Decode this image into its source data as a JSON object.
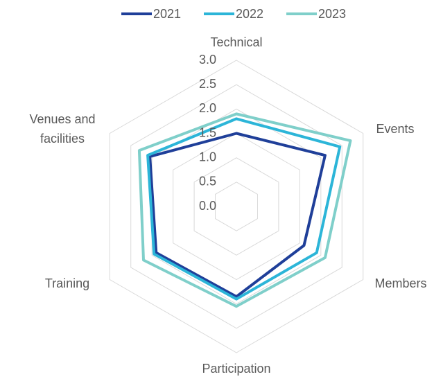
{
  "chart_data": {
    "type": "radar",
    "categories": [
      "Technical",
      "Events",
      "Members",
      "Participation",
      "Training",
      "Venues and facilities"
    ],
    "series": [
      {
        "name": "2021",
        "color": "#1f3f99",
        "values": [
          1.5,
          2.1,
          1.6,
          1.85,
          1.9,
          2.05
        ]
      },
      {
        "name": "2022",
        "color": "#2cb5d8",
        "values": [
          1.8,
          2.45,
          1.9,
          1.9,
          1.95,
          2.1
        ]
      },
      {
        "name": "2023",
        "color": "#7fcfca",
        "values": [
          1.9,
          2.7,
          2.1,
          2.05,
          2.2,
          2.3
        ]
      }
    ],
    "ylim": [
      0,
      3
    ],
    "yticks": [
      {
        "value": 0,
        "label": "0.0"
      },
      0.5,
      {
        "value": 1,
        "label": "1.0"
      },
      1.5,
      {
        "value": 2,
        "label": "2.0"
      },
      2.5,
      {
        "value": 3,
        "label": "3.0"
      }
    ],
    "grid": true,
    "legend": "top"
  }
}
